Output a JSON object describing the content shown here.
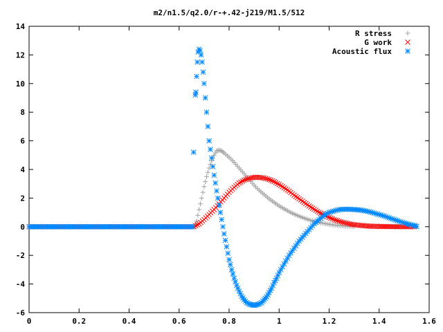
{
  "chart_data": {
    "type": "scatter",
    "title": "m2/n1.5/q2.0/r-+.42-j219/M1.5/512",
    "xlabel": "",
    "ylabel": "",
    "xlim": [
      0,
      1.6
    ],
    "ylim": [
      -6,
      14
    ],
    "x_ticks": [
      "0",
      "0.2",
      "0.4",
      "0.6",
      "0.8",
      "1",
      "1.2",
      "1.4",
      "1.6"
    ],
    "y_ticks": [
      "-6",
      "-4",
      "-2",
      "0",
      "2",
      "4",
      "6",
      "8",
      "10",
      "12",
      "14"
    ],
    "grid": false,
    "legend_position": "top-right",
    "series": [
      {
        "name": "R stress",
        "marker": "plus",
        "color": "#a0a0a0",
        "points": [
          [
            0.66,
            0.0
          ],
          [
            0.67,
            0.4
          ],
          [
            0.68,
            1.2
          ],
          [
            0.69,
            2.0
          ],
          [
            0.7,
            2.8
          ],
          [
            0.71,
            3.5
          ],
          [
            0.72,
            4.1
          ],
          [
            0.73,
            4.6
          ],
          [
            0.74,
            5.0
          ],
          [
            0.75,
            5.3
          ],
          [
            0.76,
            5.35
          ],
          [
            0.77,
            5.3
          ],
          [
            0.78,
            5.15
          ],
          [
            0.8,
            4.85
          ],
          [
            0.82,
            4.5
          ],
          [
            0.84,
            4.1
          ],
          [
            0.86,
            3.7
          ],
          [
            0.88,
            3.3
          ],
          [
            0.9,
            2.9
          ],
          [
            0.92,
            2.55
          ],
          [
            0.94,
            2.25
          ],
          [
            0.96,
            1.95
          ],
          [
            0.98,
            1.7
          ],
          [
            1.0,
            1.45
          ],
          [
            1.02,
            1.25
          ],
          [
            1.04,
            1.05
          ],
          [
            1.06,
            0.88
          ],
          [
            1.08,
            0.73
          ],
          [
            1.1,
            0.6
          ],
          [
            1.12,
            0.48
          ],
          [
            1.14,
            0.38
          ],
          [
            1.16,
            0.3
          ],
          [
            1.18,
            0.23
          ],
          [
            1.2,
            0.17
          ],
          [
            1.22,
            0.12
          ],
          [
            1.24,
            0.08
          ],
          [
            1.26,
            0.05
          ],
          [
            1.28,
            0.03
          ],
          [
            1.3,
            0.02
          ]
        ]
      },
      {
        "name": "G work",
        "marker": "cross",
        "color": "#ff0000",
        "points": [
          [
            0.66,
            0.0
          ],
          [
            0.68,
            0.2
          ],
          [
            0.7,
            0.5
          ],
          [
            0.72,
            0.85
          ],
          [
            0.74,
            1.2
          ],
          [
            0.76,
            1.6
          ],
          [
            0.78,
            2.0
          ],
          [
            0.8,
            2.4
          ],
          [
            0.82,
            2.75
          ],
          [
            0.84,
            3.05
          ],
          [
            0.86,
            3.25
          ],
          [
            0.88,
            3.38
          ],
          [
            0.9,
            3.45
          ],
          [
            0.92,
            3.45
          ],
          [
            0.94,
            3.4
          ],
          [
            0.96,
            3.3
          ],
          [
            0.98,
            3.15
          ],
          [
            1.0,
            2.95
          ],
          [
            1.02,
            2.72
          ],
          [
            1.04,
            2.48
          ],
          [
            1.06,
            2.2
          ],
          [
            1.08,
            1.95
          ],
          [
            1.1,
            1.7
          ],
          [
            1.12,
            1.45
          ],
          [
            1.14,
            1.22
          ],
          [
            1.16,
            1.0
          ],
          [
            1.18,
            0.82
          ],
          [
            1.2,
            0.65
          ],
          [
            1.22,
            0.5
          ],
          [
            1.24,
            0.38
          ],
          [
            1.26,
            0.28
          ],
          [
            1.28,
            0.2
          ],
          [
            1.3,
            0.14
          ],
          [
            1.32,
            0.1
          ],
          [
            1.34,
            0.07
          ],
          [
            1.36,
            0.04
          ],
          [
            1.38,
            0.03
          ],
          [
            1.4,
            0.02
          ],
          [
            1.44,
            0.01
          ],
          [
            1.48,
            0.0
          ],
          [
            1.52,
            0.0
          ],
          [
            1.54,
            0.0
          ]
        ]
      },
      {
        "name": "Acoustic flux",
        "marker": "star",
        "color": "#0088ff",
        "points": [
          [
            0.658,
            5.2
          ],
          [
            0.665,
            9.2
          ],
          [
            0.667,
            9.4
          ],
          [
            0.67,
            10.5
          ],
          [
            0.673,
            11.5
          ],
          [
            0.676,
            12.2
          ],
          [
            0.68,
            12.4
          ],
          [
            0.684,
            12.3
          ],
          [
            0.688,
            12.0
          ],
          [
            0.692,
            11.5
          ],
          [
            0.696,
            10.8
          ],
          [
            0.7,
            10.0
          ],
          [
            0.705,
            9.0
          ],
          [
            0.71,
            8.0
          ],
          [
            0.715,
            7.0
          ],
          [
            0.72,
            6.0
          ],
          [
            0.73,
            4.8
          ],
          [
            0.74,
            3.6
          ],
          [
            0.75,
            2.5
          ],
          [
            0.76,
            1.5
          ],
          [
            0.77,
            0.5
          ],
          [
            0.78,
            -0.5
          ],
          [
            0.79,
            -1.4
          ],
          [
            0.8,
            -2.3
          ],
          [
            0.81,
            -3.0
          ],
          [
            0.82,
            -3.6
          ],
          [
            0.83,
            -4.1
          ],
          [
            0.84,
            -4.5
          ],
          [
            0.85,
            -4.85
          ],
          [
            0.86,
            -5.1
          ],
          [
            0.87,
            -5.3
          ],
          [
            0.88,
            -5.4
          ],
          [
            0.89,
            -5.45
          ],
          [
            0.9,
            -5.5
          ],
          [
            0.91,
            -5.45
          ],
          [
            0.92,
            -5.4
          ],
          [
            0.93,
            -5.3
          ],
          [
            0.94,
            -5.1
          ],
          [
            0.95,
            -4.9
          ],
          [
            0.96,
            -4.6
          ],
          [
            0.97,
            -4.3
          ],
          [
            0.98,
            -3.9
          ],
          [
            0.99,
            -3.6
          ],
          [
            1.0,
            -3.2
          ],
          [
            1.02,
            -2.6
          ],
          [
            1.04,
            -2.0
          ],
          [
            1.06,
            -1.5
          ],
          [
            1.08,
            -1.0
          ],
          [
            1.1,
            -0.6
          ],
          [
            1.12,
            -0.2
          ],
          [
            1.14,
            0.2
          ],
          [
            1.16,
            0.5
          ],
          [
            1.18,
            0.8
          ],
          [
            1.2,
            1.0
          ],
          [
            1.22,
            1.1
          ],
          [
            1.24,
            1.2
          ],
          [
            1.26,
            1.22
          ],
          [
            1.28,
            1.22
          ],
          [
            1.3,
            1.2
          ],
          [
            1.32,
            1.18
          ],
          [
            1.34,
            1.12
          ],
          [
            1.36,
            1.05
          ],
          [
            1.38,
            0.95
          ],
          [
            1.4,
            0.85
          ],
          [
            1.42,
            0.75
          ],
          [
            1.44,
            0.62
          ],
          [
            1.46,
            0.5
          ],
          [
            1.48,
            0.38
          ],
          [
            1.5,
            0.27
          ],
          [
            1.52,
            0.17
          ],
          [
            1.54,
            0.08
          ],
          [
            1.55,
            0.02
          ]
        ]
      }
    ]
  }
}
